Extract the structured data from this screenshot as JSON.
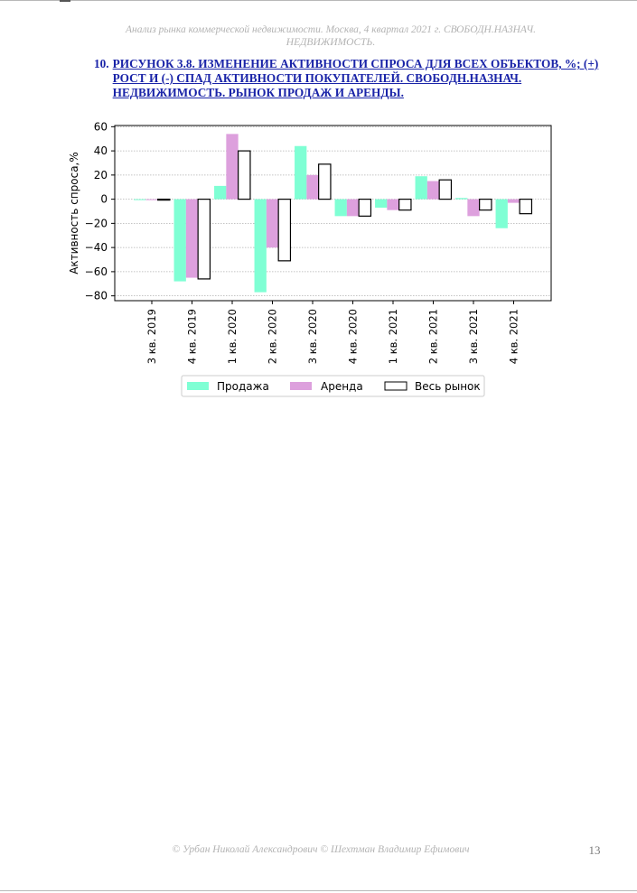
{
  "document": {
    "running_header": "Анализ рынка коммерческой недвижимости.  Москва,  4 квартал 2021 г.  СВОБОДН.НАЗНАЧ. НЕДВИЖИМОСТЬ.",
    "figure_number": "10.",
    "figure_caption": "РИСУНОК 3.8. ИЗМЕНЕНИЕ АКТИВНОСТИ СПРОСА ДЛЯ ВСЕХ ОБЪЕКТОВ, %; (+) РОСТ И (-) СПАД АКТИВНОСТИ ПОКУПАТЕЛЕЙ. СВОБОДН.НАЗНАЧ. НЕДВИЖИМОСТЬ. РЫНОК ПРОДАЖ И АРЕНДЫ.",
    "footer_authors": "© Урбан Николай Александрович   © Шехтман Владимир Ефимович",
    "page_number": "13"
  },
  "chart_data": {
    "type": "bar",
    "title": "",
    "xlabel": "",
    "ylabel": "Активность спроса,%",
    "categories": [
      "3 кв. 2019",
      "4 кв. 2019",
      "1 кв. 2020",
      "2 кв. 2020",
      "3 кв. 2020",
      "4 кв. 2020",
      "1 кв. 2021",
      "2 кв. 2021",
      "3 кв. 2021",
      "4 кв. 2021"
    ],
    "series": [
      {
        "name": "Продажа",
        "values": [
          0,
          -68,
          11,
          -77,
          44,
          -14,
          -7,
          19,
          1,
          -24
        ],
        "color": "#7fffd4",
        "style": "fill"
      },
      {
        "name": "Аренда",
        "values": [
          0,
          -65,
          54,
          -40,
          20,
          -14,
          -9,
          15,
          -14,
          -3
        ],
        "color": "#dda0dd",
        "style": "fill"
      },
      {
        "name": "Весь рынок",
        "values": [
          0,
          -66,
          40,
          -51,
          29,
          -14,
          -9,
          16,
          -9,
          -12
        ],
        "color": "#ffffff",
        "style": "outline"
      }
    ],
    "yticks": [
      60,
      40,
      20,
      0,
      -20,
      -40,
      -60,
      -80
    ],
    "ytick_labels": [
      "60",
      "40",
      "20",
      "0",
      "−20",
      "−40",
      "−60",
      "−80"
    ],
    "ylim": [
      -84,
      61
    ],
    "grid": true,
    "legend_position": "bottom-center"
  }
}
